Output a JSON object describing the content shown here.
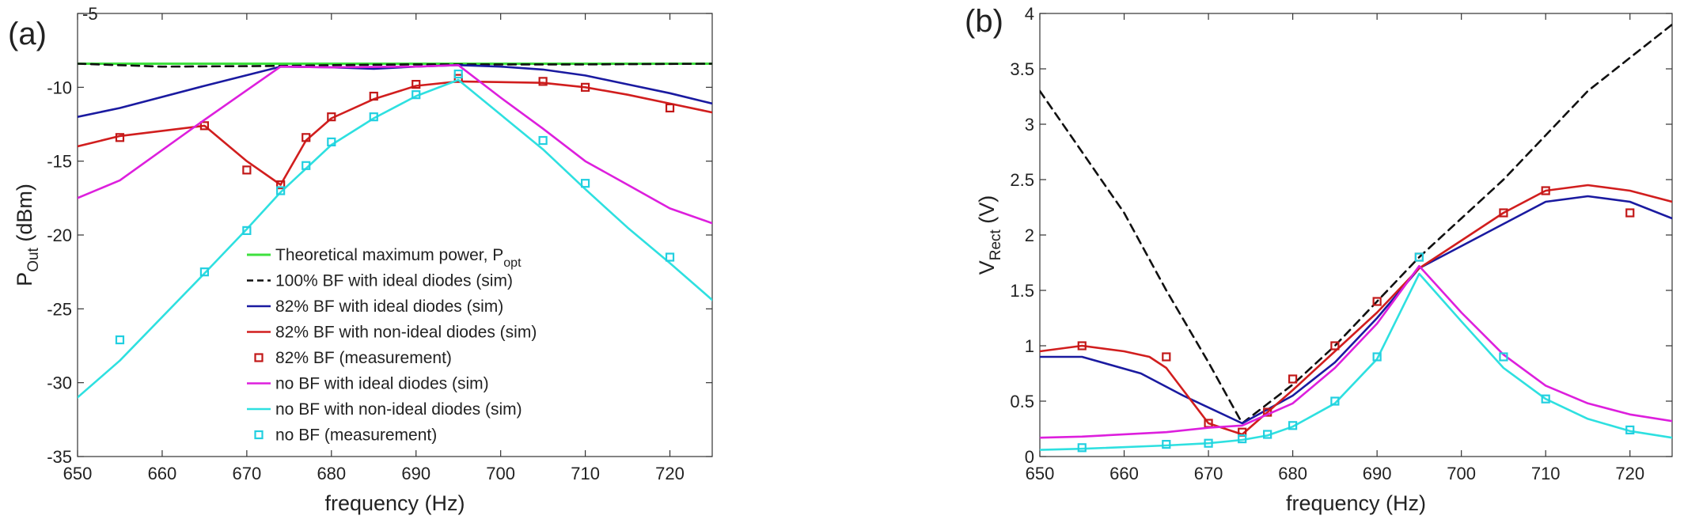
{
  "chart_data": [
    {
      "type": "line",
      "panel_label": "(a)",
      "xlabel": "frequency (Hz)",
      "ylabel": "P",
      "ylabel_sub": "Out",
      "ylabel_unit": " (dBm)",
      "xlim": [
        650,
        725
      ],
      "ylim": [
        -35,
        -5
      ],
      "xticks": [
        "650",
        "660",
        "670",
        "680",
        "690",
        "700",
        "710",
        "720"
      ],
      "xtick_values": [
        650,
        660,
        670,
        680,
        690,
        700,
        710,
        720
      ],
      "yticks": [
        "-35",
        "-30",
        "-25",
        "-20",
        "-15",
        "-10",
        "-5"
      ],
      "ytick_values": [
        -35,
        -30,
        -25,
        -20,
        -15,
        -10,
        -5
      ],
      "legend_placement": "lower-center",
      "series": [
        {
          "name": "Theoretical maximum power, P",
          "name_sub": "opt",
          "kind": "line",
          "color": "#3ee03e",
          "dash": "",
          "width": 3,
          "x": [
            650,
            725
          ],
          "y": [
            -8.4,
            -8.4
          ]
        },
        {
          "name": "100% BF with ideal diodes (sim)",
          "kind": "line",
          "color": "#111111",
          "dash": "10,7",
          "width": 2.6,
          "x": [
            650,
            660,
            674,
            680,
            690,
            700,
            710,
            725
          ],
          "y": [
            -8.4,
            -8.6,
            -8.55,
            -8.5,
            -8.45,
            -8.45,
            -8.45,
            -8.4
          ]
        },
        {
          "name": "82% BF with ideal diodes (sim)",
          "kind": "line",
          "color": "#1a1aa0",
          "dash": "",
          "width": 2.6,
          "x": [
            650,
            655,
            665,
            674,
            680,
            685,
            690,
            695,
            700,
            705,
            710,
            715,
            720,
            725
          ],
          "y": [
            -12.0,
            -11.4,
            -9.9,
            -8.6,
            -8.65,
            -8.75,
            -8.6,
            -8.5,
            -8.6,
            -8.8,
            -9.2,
            -9.8,
            -10.4,
            -11.1
          ]
        },
        {
          "name": "82% BF with non-ideal diodes (sim)",
          "kind": "line",
          "color": "#d11e1e",
          "dash": "",
          "width": 2.6,
          "x": [
            650,
            655,
            665,
            670,
            674,
            677,
            680,
            685,
            690,
            695,
            705,
            710,
            715,
            720,
            725
          ],
          "y": [
            -14.0,
            -13.3,
            -12.6,
            -15.0,
            -16.6,
            -13.6,
            -12.1,
            -10.8,
            -9.9,
            -9.6,
            -9.7,
            -10.0,
            -10.5,
            -11.1,
            -11.7
          ]
        },
        {
          "name": "82% BF (measurement)",
          "kind": "marker",
          "color": "#c21818",
          "x": [
            655,
            665,
            670,
            674,
            677,
            680,
            685,
            690,
            695,
            705,
            710,
            720
          ],
          "y": [
            -13.4,
            -12.6,
            -15.6,
            -16.6,
            -13.4,
            -12.0,
            -10.6,
            -9.8,
            -9.4,
            -9.6,
            -10.0,
            -11.4
          ]
        },
        {
          "name": "no BF with ideal diodes (sim)",
          "kind": "line",
          "color": "#dd1fdd",
          "dash": "",
          "width": 2.6,
          "x": [
            650,
            655,
            665,
            674,
            680,
            690,
            695,
            700,
            705,
            710,
            715,
            720,
            725
          ],
          "y": [
            -17.5,
            -16.3,
            -12.2,
            -8.6,
            -8.65,
            -8.6,
            -8.5,
            -10.7,
            -12.8,
            -15.0,
            -16.6,
            -18.2,
            -19.2
          ]
        },
        {
          "name": "no BF with non-ideal diodes (sim)",
          "kind": "line",
          "color": "#2ee0e0",
          "dash": "",
          "width": 2.6,
          "x": [
            650,
            655,
            665,
            670,
            674,
            677,
            680,
            685,
            690,
            695,
            705,
            710,
            715,
            720,
            725
          ],
          "y": [
            -31.0,
            -28.5,
            -22.6,
            -19.6,
            -17.1,
            -15.5,
            -13.9,
            -12.1,
            -10.6,
            -9.5,
            -14.2,
            -16.9,
            -19.5,
            -21.9,
            -24.4
          ]
        },
        {
          "name": "no BF (measurement)",
          "kind": "marker",
          "color": "#22cfe0",
          "x": [
            655,
            665,
            670,
            674,
            677,
            680,
            685,
            690,
            695,
            705,
            710,
            720
          ],
          "y": [
            -27.1,
            -22.5,
            -19.7,
            -17.0,
            -15.3,
            -13.7,
            -12.0,
            -10.5,
            -9.1,
            -13.6,
            -16.5,
            -21.5
          ]
        }
      ]
    },
    {
      "type": "line",
      "panel_label": "(b)",
      "xlabel": "frequency (Hz)",
      "ylabel": "V",
      "ylabel_sub": "Rect",
      "ylabel_unit": " (V)",
      "xlim": [
        650,
        725
      ],
      "ylim": [
        0,
        4
      ],
      "xticks": [
        "650",
        "660",
        "670",
        "680",
        "690",
        "700",
        "710",
        "720"
      ],
      "xtick_values": [
        650,
        660,
        670,
        680,
        690,
        700,
        710,
        720
      ],
      "yticks": [
        "0",
        "0.5",
        "1",
        "1.5",
        "2",
        "2.5",
        "3",
        "3.5",
        "4"
      ],
      "ytick_values": [
        0,
        0.5,
        1,
        1.5,
        2,
        2.5,
        3,
        3.5,
        4
      ],
      "series": [
        {
          "name": "100% BF with ideal diodes (sim)",
          "kind": "line",
          "color": "#111111",
          "dash": "10,7",
          "width": 2.6,
          "x": [
            650,
            655,
            660,
            665,
            670,
            674,
            680,
            685,
            690,
            695,
            700,
            705,
            710,
            715,
            720,
            725
          ],
          "y": [
            3.3,
            2.75,
            2.2,
            1.5,
            0.85,
            0.3,
            0.65,
            1.0,
            1.4,
            1.8,
            2.15,
            2.5,
            2.9,
            3.3,
            3.6,
            3.9
          ]
        },
        {
          "name": "82% BF with ideal diodes (sim)",
          "kind": "line",
          "color": "#1a1aa0",
          "dash": "",
          "width": 2.6,
          "x": [
            650,
            655,
            662,
            667,
            674,
            680,
            685,
            690,
            695,
            700,
            705,
            710,
            715,
            720,
            725
          ],
          "y": [
            0.9,
            0.9,
            0.75,
            0.55,
            0.3,
            0.55,
            0.85,
            1.25,
            1.7,
            1.9,
            2.1,
            2.3,
            2.35,
            2.3,
            2.15
          ]
        },
        {
          "name": "82% BF with non-ideal diodes (sim)",
          "kind": "line",
          "color": "#d11e1e",
          "dash": "",
          "width": 2.6,
          "x": [
            650,
            655,
            660,
            663,
            665,
            667,
            670,
            674,
            677,
            680,
            685,
            690,
            695,
            700,
            705,
            710,
            715,
            720,
            725
          ],
          "y": [
            0.95,
            1.0,
            0.95,
            0.9,
            0.8,
            0.6,
            0.3,
            0.2,
            0.4,
            0.6,
            0.95,
            1.3,
            1.7,
            1.95,
            2.2,
            2.4,
            2.45,
            2.4,
            2.3
          ]
        },
        {
          "name": "82% BF (measurement)",
          "kind": "marker",
          "color": "#c21818",
          "x": [
            655,
            665,
            670,
            674,
            677,
            680,
            685,
            690,
            695,
            705,
            710,
            720
          ],
          "y": [
            1.0,
            0.9,
            0.3,
            0.22,
            0.4,
            0.7,
            1.0,
            1.4,
            1.8,
            2.2,
            2.4,
            2.2
          ]
        },
        {
          "name": "no BF with ideal diodes (sim)",
          "kind": "line",
          "color": "#dd1fdd",
          "dash": "",
          "width": 2.6,
          "x": [
            650,
            655,
            665,
            670,
            674,
            680,
            685,
            690,
            695,
            700,
            705,
            710,
            715,
            720,
            725
          ],
          "y": [
            0.17,
            0.18,
            0.22,
            0.26,
            0.28,
            0.48,
            0.8,
            1.2,
            1.72,
            1.3,
            0.92,
            0.64,
            0.48,
            0.38,
            0.32
          ]
        },
        {
          "name": "no BF with non-ideal diodes (sim)",
          "kind": "line",
          "color": "#2ee0e0",
          "dash": "",
          "width": 2.6,
          "x": [
            650,
            655,
            665,
            670,
            674,
            677,
            680,
            685,
            690,
            695,
            700,
            705,
            710,
            715,
            720,
            725
          ],
          "y": [
            0.06,
            0.07,
            0.1,
            0.12,
            0.15,
            0.19,
            0.27,
            0.48,
            0.88,
            1.65,
            1.22,
            0.8,
            0.52,
            0.34,
            0.23,
            0.17
          ]
        },
        {
          "name": "no BF (measurement)",
          "kind": "marker",
          "color": "#22cfe0",
          "x": [
            655,
            665,
            670,
            674,
            677,
            680,
            685,
            690,
            695,
            705,
            710,
            720
          ],
          "y": [
            0.08,
            0.11,
            0.12,
            0.16,
            0.2,
            0.28,
            0.5,
            0.9,
            1.8,
            0.9,
            0.52,
            0.24
          ]
        }
      ]
    }
  ]
}
